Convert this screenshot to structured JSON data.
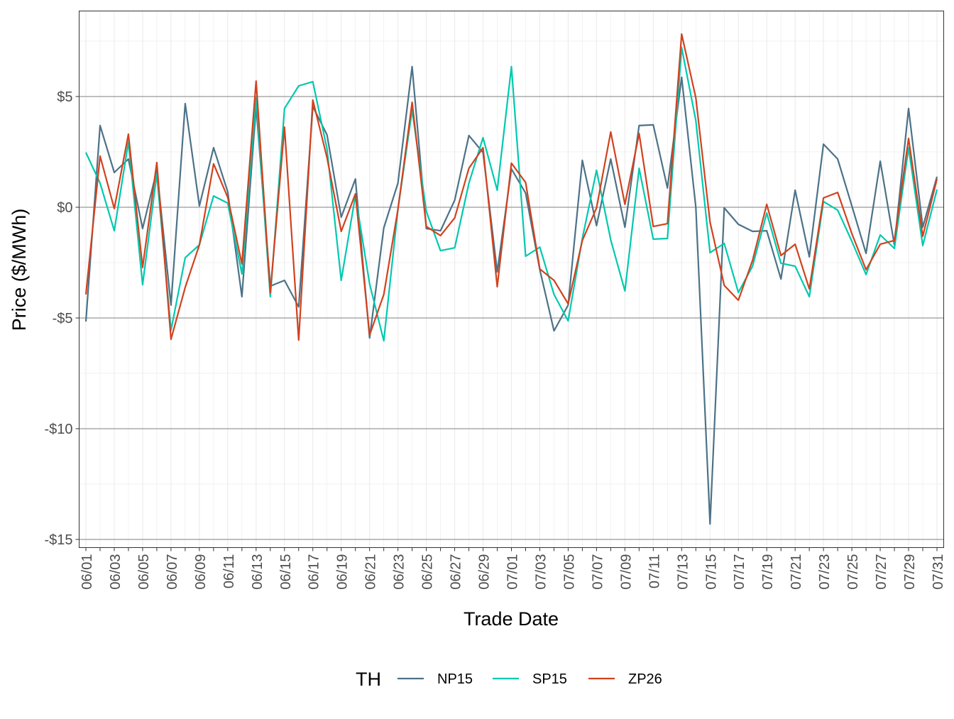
{
  "chart_data": {
    "type": "line",
    "title": "",
    "xlabel": "Trade Date",
    "ylabel": "Price ($/MWh)",
    "ylim": [
      -15.4,
      8.9
    ],
    "yticks": [
      5,
      0,
      -5,
      -10,
      -15
    ],
    "ytick_labels": [
      "$5",
      "$0",
      "-$5",
      "-$10",
      "-$15"
    ],
    "grid": true,
    "legend": {
      "title": "TH",
      "placement": "bottom"
    },
    "x": [
      "06/01",
      "06/02",
      "06/03",
      "06/04",
      "06/05",
      "06/06",
      "06/07",
      "06/08",
      "06/09",
      "06/10",
      "06/11",
      "06/12",
      "06/13",
      "06/14",
      "06/15",
      "06/16",
      "06/17",
      "06/18",
      "06/19",
      "06/20",
      "06/21",
      "06/22",
      "06/23",
      "06/24",
      "06/25",
      "06/26",
      "06/27",
      "06/28",
      "06/29",
      "06/30",
      "07/01",
      "07/02",
      "07/03",
      "07/04",
      "07/05",
      "07/06",
      "07/07",
      "07/08",
      "07/09",
      "07/10",
      "07/11",
      "07/12",
      "07/13",
      "07/14",
      "07/15",
      "07/16",
      "07/17",
      "07/18",
      "07/19",
      "07/20",
      "07/21",
      "07/22",
      "07/23",
      "07/24",
      "07/25",
      "07/26",
      "07/27",
      "07/28",
      "07/29",
      "07/30",
      "07/31"
    ],
    "series": [
      {
        "name": "NP15",
        "color": "#4c7287",
        "values": [
          -5.16,
          3.69,
          1.57,
          2.18,
          -0.96,
          1.67,
          -4.42,
          4.68,
          0.06,
          2.69,
          0.7,
          -4.04,
          4.55,
          -3.56,
          -3.3,
          -4.5,
          4.55,
          3.27,
          -0.45,
          1.28,
          -5.9,
          -0.93,
          1.09,
          6.35,
          -0.96,
          -1.06,
          0.32,
          3.24,
          2.47,
          -2.92,
          1.73,
          0.64,
          -2.82,
          -5.58,
          -4.42,
          2.12,
          -0.83,
          2.18,
          -0.9,
          3.69,
          3.72,
          0.87,
          5.87,
          0,
          -14.3,
          -0.03,
          -0.77,
          -1.09,
          -1.06,
          -3.24,
          0.77,
          -2.24,
          2.85,
          2.18,
          0.06,
          -2.08,
          2.08,
          -1.7,
          4.46,
          -0.9,
          1.38
        ]
      },
      {
        "name": "SP15",
        "color": "#00c9b0",
        "values": [
          2.47,
          1.09,
          -1.06,
          2.95,
          -3.5,
          1.5,
          -5.55,
          -2.28,
          -1.7,
          0.51,
          0.19,
          -3.01,
          4.97,
          -4.04,
          4.46,
          5.48,
          5.67,
          2.63,
          -3.3,
          0.54,
          -3.46,
          -6.03,
          -0.1,
          4.39,
          -0.19,
          -1.96,
          -1.83,
          1.09,
          3.14,
          0.77,
          6.35,
          -2.21,
          -1.8,
          -3.94,
          -5.13,
          -1.41,
          1.67,
          -1.47,
          -3.78,
          1.76,
          -1.44,
          -1.41,
          7.21,
          3.91,
          -2.05,
          -1.63,
          -3.85,
          -2.66,
          -0.26,
          -2.53,
          -2.66,
          -4.04,
          0.26,
          -0.13,
          -1.54,
          -3.04,
          -1.25,
          -1.86,
          2.69,
          -1.73,
          0.8
        ]
      },
      {
        "name": "ZP26",
        "color": "#d1421e",
        "values": [
          -3.94,
          2.31,
          -0.06,
          3.3,
          -2.72,
          2.02,
          -5.96,
          -3.62,
          -1.7,
          1.96,
          0.45,
          -2.56,
          5.7,
          -3.85,
          3.62,
          -6,
          4.84,
          2.24,
          -1.09,
          0.61,
          -5.77,
          -3.94,
          -0.1,
          4.74,
          -0.87,
          -1.28,
          -0.48,
          1.76,
          2.69,
          -3.59,
          1.99,
          1.12,
          -2.79,
          -3.3,
          -4.36,
          -1.5,
          -0.03,
          3.4,
          0.13,
          3.33,
          -0.87,
          -0.74,
          7.82,
          4.94,
          -0.67,
          -3.53,
          -4.2,
          -2.4,
          0.13,
          -2.18,
          -1.67,
          -3.69,
          0.42,
          0.67,
          -1.19,
          -2.82,
          -1.67,
          -1.5,
          3.11,
          -1.31,
          1.28
        ]
      }
    ]
  }
}
